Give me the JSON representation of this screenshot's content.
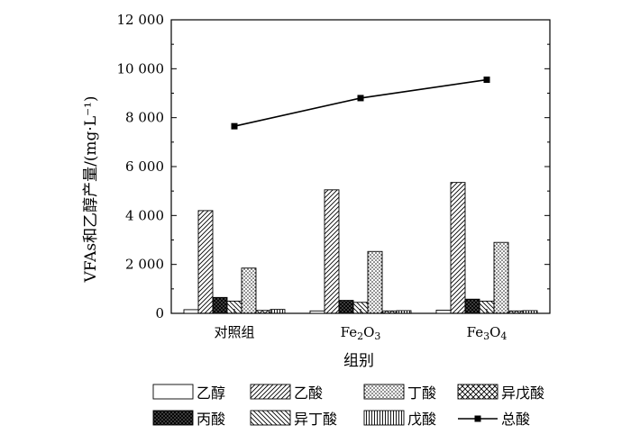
{
  "chart_data": {
    "type": "bar",
    "categories": [
      "对照组",
      "Fe2O3",
      "Fe3O4"
    ],
    "category_labels": [
      {
        "base": "对照组",
        "parts": []
      },
      {
        "base": "Fe",
        "parts": [
          [
            "2",
            "sub"
          ],
          [
            "O",
            "base"
          ],
          [
            "3",
            "sub"
          ]
        ]
      },
      {
        "base": "Fe",
        "parts": [
          [
            "3",
            "sub"
          ],
          [
            "O",
            "base"
          ],
          [
            "4",
            "sub"
          ]
        ]
      }
    ],
    "xlabel": "组别",
    "ylabel": "VFAs和乙醇产量/(mg·L⁻¹)",
    "ylim": [
      0,
      12000
    ],
    "yticks": [
      0,
      2000,
      4000,
      6000,
      8000,
      10000,
      12000
    ],
    "ytick_labels": [
      "0",
      "2 000",
      "4 000",
      "6 000",
      "8 000",
      "10 000",
      "12 000"
    ],
    "grid": false,
    "legend_position": "bottom",
    "series": [
      {
        "name": "乙醇",
        "kind": "bar",
        "pattern": "blank",
        "values": [
          150,
          100,
          130
        ]
      },
      {
        "name": "乙酸",
        "kind": "bar",
        "pattern": "diag-right",
        "values": [
          4200,
          5050,
          5350
        ]
      },
      {
        "name": "丙酸",
        "kind": "bar",
        "pattern": "crosshatch-dense",
        "values": [
          650,
          530,
          580
        ]
      },
      {
        "name": "异丁酸",
        "kind": "bar",
        "pattern": "diag-left",
        "values": [
          500,
          450,
          500
        ]
      },
      {
        "name": "丁酸",
        "kind": "bar",
        "pattern": "dots",
        "values": [
          1850,
          2530,
          2900
        ]
      },
      {
        "name": "异戊酸",
        "kind": "bar",
        "pattern": "crosshatch",
        "values": [
          120,
          100,
          100
        ]
      },
      {
        "name": "戊酸",
        "kind": "bar",
        "pattern": "vertical",
        "values": [
          160,
          110,
          110
        ]
      },
      {
        "name": "总酸",
        "kind": "line",
        "marker": "square",
        "values": [
          7650,
          8800,
          9550
        ]
      }
    ],
    "legend_order": [
      "乙醇",
      "乙酸",
      "丁酸",
      "异戊酸",
      "丙酸",
      "异丁酸",
      "戊酸",
      "总酸"
    ]
  }
}
